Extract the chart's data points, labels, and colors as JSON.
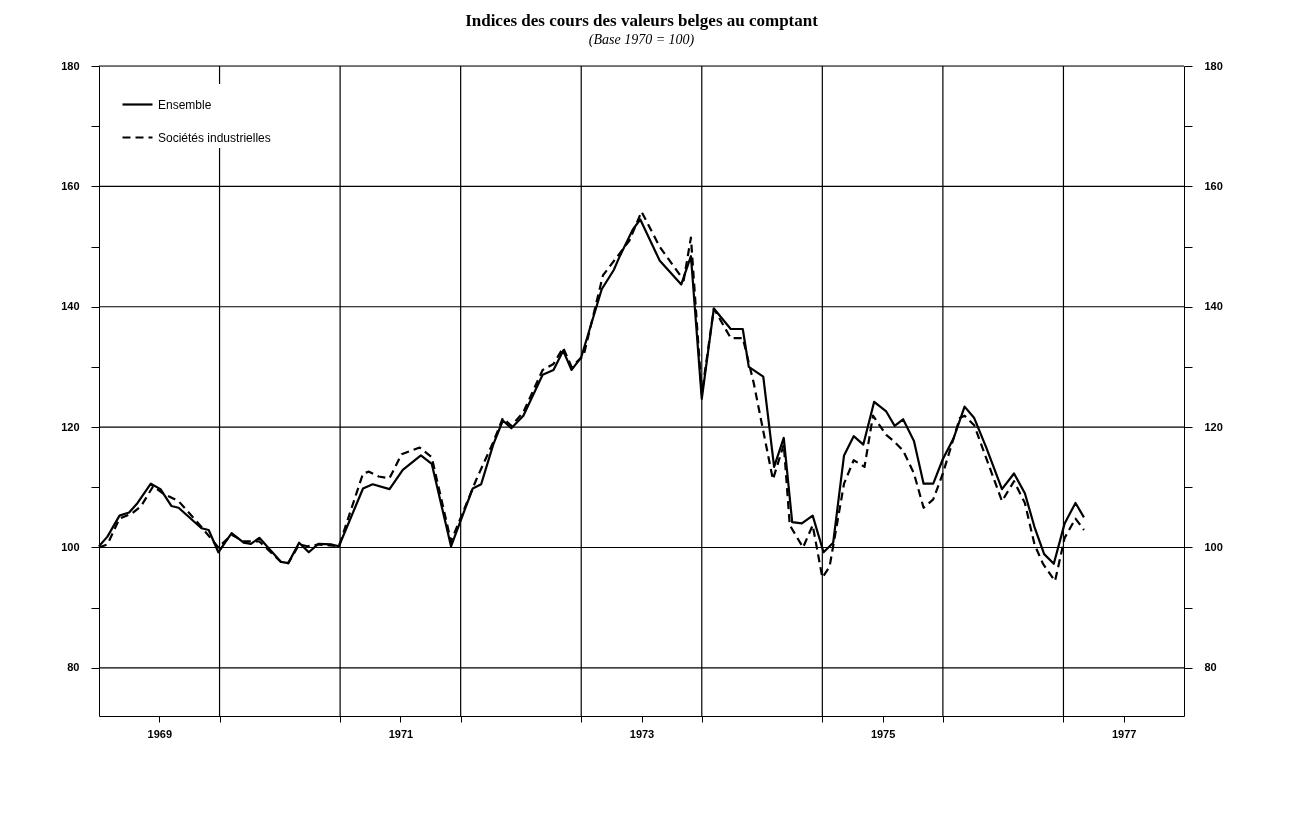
{
  "chart_data": {
    "type": "line",
    "title": "Indices des cours des valeurs belges au comptant",
    "subtitle": "(Base 1970 = 100)",
    "xlim": [
      1969,
      1978
    ],
    "xticks": [
      {
        "value": 1969.5,
        "label": "1969"
      },
      {
        "value": 1970,
        "label": null
      },
      {
        "value": 1971,
        "label": null
      },
      {
        "value": 1971.5,
        "label": "1971"
      },
      {
        "value": 1972,
        "label": null
      },
      {
        "value": 1973,
        "label": null
      },
      {
        "value": 1973.5,
        "label": "1973"
      },
      {
        "value": 1974,
        "label": null
      },
      {
        "value": 1975,
        "label": null
      },
      {
        "value": 1975.5,
        "label": "1975"
      },
      {
        "value": 1976,
        "label": null
      },
      {
        "value": 1977,
        "label": null
      },
      {
        "value": 1977.5,
        "label": "1977"
      }
    ],
    "ylim": [
      72,
      180
    ],
    "yticks": [
      80,
      {
        "value": 90,
        "label": null
      },
      100,
      {
        "value": 110,
        "label": null
      },
      120,
      {
        "value": 130,
        "label": null
      },
      140,
      {
        "value": 150,
        "label": null
      },
      160,
      {
        "value": 170,
        "label": null
      },
      180
    ],
    "y2lim": [
      72,
      180
    ],
    "y2ticks": [
      80,
      {
        "value": 90,
        "label": null
      },
      100,
      {
        "value": 110,
        "label": null
      },
      120,
      {
        "value": 130,
        "label": null
      },
      140,
      {
        "value": 150,
        "label": null
      },
      160,
      {
        "value": 170,
        "label": null
      },
      180
    ],
    "grid": true,
    "legend": "top left",
    "series": [
      {
        "name": "Ensemble",
        "color": "#000000",
        "line_style": "solid",
        "x": [
          1969.0,
          1969.07,
          1969.17,
          1969.25,
          1969.32,
          1969.43,
          1969.51,
          1969.6,
          1969.66,
          1969.85,
          1969.91,
          1969.99,
          1970.1,
          1970.2,
          1970.26,
          1970.33,
          1970.51,
          1970.57,
          1970.66,
          1970.74,
          1970.82,
          1970.93,
          1970.99,
          1971.19,
          1971.27,
          1971.41,
          1971.52,
          1971.67,
          1971.76,
          1971.92,
          1972.1,
          1972.17,
          1972.27,
          1972.35,
          1972.42,
          1972.52,
          1972.68,
          1972.77,
          1972.85,
          1972.92,
          1973.0,
          1973.17,
          1973.27,
          1973.32,
          1973.43,
          1973.49,
          1973.65,
          1973.83,
          1973.91,
          1974.0,
          1974.1,
          1974.24,
          1974.34,
          1974.39,
          1974.51,
          1974.6,
          1974.68,
          1974.75,
          1974.83,
          1974.92,
          1975.01,
          1975.09,
          1975.18,
          1975.26,
          1975.34,
          1975.43,
          1975.53,
          1975.6,
          1975.67,
          1975.76,
          1975.84,
          1975.92,
          1976.0,
          1976.09,
          1976.18,
          1976.26,
          1976.36,
          1976.49,
          1976.59,
          1976.68,
          1976.76,
          1976.84,
          1976.92,
          1977.01,
          1977.1,
          1977.17
        ],
        "values": [
          100.2,
          101.8,
          105.3,
          105.8,
          107.4,
          110.6,
          109.7,
          106.9,
          106.6,
          103.2,
          102.9,
          99.2,
          102.4,
          100.8,
          100.6,
          101.6,
          97.6,
          97.4,
          100.8,
          99.2,
          100.6,
          100.5,
          100.2,
          109.8,
          110.5,
          109.7,
          112.9,
          115.3,
          113.9,
          100.2,
          109.8,
          110.5,
          117.1,
          121.1,
          119.8,
          121.9,
          128.7,
          129.5,
          132.7,
          129.5,
          131.6,
          142.9,
          146.1,
          148.4,
          152.9,
          154.5,
          147.7,
          143.7,
          148.4,
          124.7,
          139.7,
          136.3,
          136.3,
          130,
          128.4,
          113.4,
          118.2,
          104.2,
          104,
          105.3,
          99.2,
          100.8,
          115.3,
          118.5,
          117.1,
          124.2,
          122.6,
          120.2,
          121.3,
          117.7,
          110.6,
          110.6,
          114.7,
          118.2,
          123.4,
          121.5,
          116.6,
          109.7,
          112.3,
          109,
          103.4,
          98.9,
          97.3,
          104,
          107.4,
          105
        ]
      },
      {
        "name": "Sociétés industrielles",
        "color": "#000000",
        "line_style": "dashed",
        "x": [
          1969.0,
          1969.07,
          1969.17,
          1969.27,
          1969.35,
          1969.45,
          1969.53,
          1969.66,
          1969.85,
          1969.99,
          1970.1,
          1970.2,
          1970.33,
          1970.51,
          1970.57,
          1970.66,
          1970.73,
          1970.82,
          1970.99,
          1971.19,
          1971.24,
          1971.32,
          1971.41,
          1971.51,
          1971.66,
          1971.76,
          1971.92,
          1972.13,
          1972.27,
          1972.35,
          1972.42,
          1972.52,
          1972.68,
          1972.77,
          1972.85,
          1972.92,
          1973.02,
          1973.18,
          1973.4,
          1973.5,
          1973.65,
          1973.85,
          1973.91,
          1974.0,
          1974.1,
          1974.24,
          1974.34,
          1974.43,
          1974.59,
          1974.68,
          1974.73,
          1974.84,
          1974.92,
          1975.0,
          1975.06,
          1975.18,
          1975.26,
          1975.35,
          1975.42,
          1975.53,
          1975.59,
          1975.67,
          1975.76,
          1975.84,
          1975.92,
          1976.0,
          1976.14,
          1976.18,
          1976.26,
          1976.49,
          1976.59,
          1976.68,
          1976.76,
          1976.83,
          1976.93,
          1977.01,
          1977.1,
          1977.17
        ],
        "values": [
          100,
          100.5,
          104.8,
          105.6,
          106.9,
          110.2,
          109,
          107.7,
          103.4,
          100,
          102.1,
          101,
          101,
          97.6,
          97.4,
          100.5,
          100.2,
          100.5,
          100.2,
          112.3,
          112.6,
          111.8,
          111.5,
          115.5,
          116.6,
          115,
          101,
          111.3,
          117.5,
          121.5,
          120.2,
          122.5,
          129.5,
          130.5,
          133.2,
          130,
          131.9,
          145.2,
          151,
          155.8,
          150,
          144.4,
          151.5,
          125.5,
          139.7,
          134.8,
          134.8,
          127.4,
          111.3,
          117.1,
          103.7,
          100,
          103.7,
          95,
          96.8,
          110.6,
          114.5,
          113.4,
          121.9,
          118.7,
          117.7,
          116.1,
          112.3,
          106.6,
          108,
          112.3,
          121.5,
          121.9,
          120.3,
          107.7,
          111,
          107.4,
          100.5,
          97.3,
          94.4,
          101.6,
          104.8,
          102.9
        ]
      }
    ]
  }
}
